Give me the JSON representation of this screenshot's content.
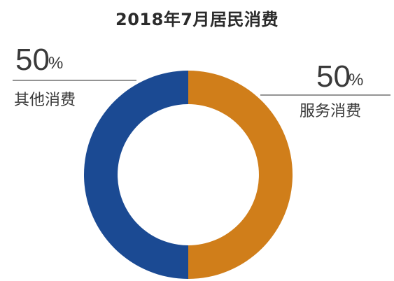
{
  "chart_data": {
    "type": "pie",
    "title": "2018年7月居民消费",
    "donut": true,
    "categories": [
      "服务消费",
      "其他消费"
    ],
    "values": [
      50,
      50
    ],
    "value_labels": [
      "50",
      "50"
    ],
    "unit": "%",
    "colors": [
      "#D07E1A",
      "#1B4A93"
    ]
  }
}
